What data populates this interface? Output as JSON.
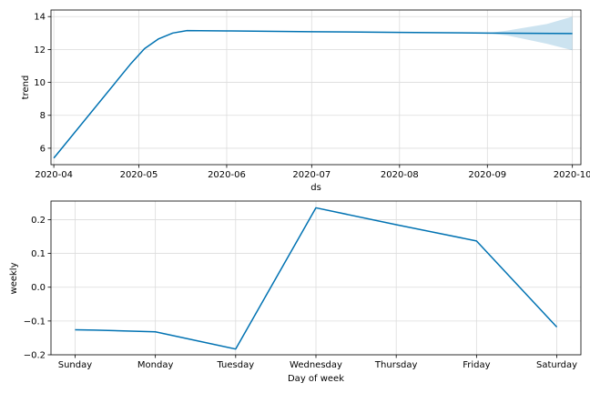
{
  "colors": {
    "line": "#0072B2",
    "band_fill": "#0072B2",
    "grid": "#dcdcdc",
    "axis": "#000000",
    "background": "#ffffff"
  },
  "chart_data": [
    {
      "type": "line",
      "title": "",
      "xlabel": "ds",
      "ylabel": "trend",
      "x_is_date": true,
      "xlim": [
        "2020-03-31",
        "2020-10-04"
      ],
      "ylim": [
        5.0,
        14.4
      ],
      "grid": true,
      "x_ticks": [
        {
          "value": "2020-04-01",
          "label": "2020-04"
        },
        {
          "value": "2020-05-01",
          "label": "2020-05"
        },
        {
          "value": "2020-06-01",
          "label": "2020-06"
        },
        {
          "value": "2020-07-01",
          "label": "2020-07"
        },
        {
          "value": "2020-08-01",
          "label": "2020-08"
        },
        {
          "value": "2020-09-01",
          "label": "2020-09"
        },
        {
          "value": "2020-10-01",
          "label": "2020-10"
        }
      ],
      "y_ticks": [
        {
          "value": 6,
          "label": "6"
        },
        {
          "value": 8,
          "label": "8"
        },
        {
          "value": 10,
          "label": "10"
        },
        {
          "value": 12,
          "label": "12"
        },
        {
          "value": 14,
          "label": "14"
        }
      ],
      "series": [
        {
          "x": [
            "2020-04-01",
            "2020-04-28",
            "2020-05-03",
            "2020-05-08",
            "2020-05-13",
            "2020-05-18",
            "2020-06-01",
            "2020-07-01",
            "2020-08-01",
            "2020-09-01",
            "2020-10-01"
          ],
          "y": [
            5.4,
            11.1,
            12.05,
            12.65,
            13.0,
            13.15,
            13.13,
            13.08,
            13.04,
            13.0,
            12.97
          ]
        }
      ],
      "uncertainty_band": {
        "x": [
          "2020-09-01",
          "2020-09-08",
          "2020-09-15",
          "2020-09-22",
          "2020-10-01"
        ],
        "lower": [
          13.0,
          12.85,
          12.6,
          12.35,
          11.95
        ],
        "upper": [
          13.0,
          13.15,
          13.35,
          13.55,
          14.0
        ]
      }
    },
    {
      "type": "line",
      "title": "",
      "xlabel": "Day of week",
      "ylabel": "weekly",
      "grid": true,
      "categories": [
        "Sunday",
        "Monday",
        "Tuesday",
        "Wednesday",
        "Thursday",
        "Friday",
        "Saturday"
      ],
      "xlim": [
        -0.3,
        6.3
      ],
      "ylim": [
        -0.2,
        0.255
      ],
      "y_ticks": [
        {
          "value": -0.2,
          "label": "−0.2"
        },
        {
          "value": -0.1,
          "label": "−0.1"
        },
        {
          "value": 0.0,
          "label": "0.0"
        },
        {
          "value": 0.1,
          "label": "0.1"
        },
        {
          "value": 0.2,
          "label": "0.2"
        }
      ],
      "series": [
        {
          "x": [
            0,
            0.25,
            1,
            2,
            3,
            4,
            5,
            6
          ],
          "y": [
            -0.126,
            -0.127,
            -0.132,
            -0.183,
            0.235,
            0.185,
            0.137,
            -0.118
          ]
        }
      ]
    }
  ]
}
